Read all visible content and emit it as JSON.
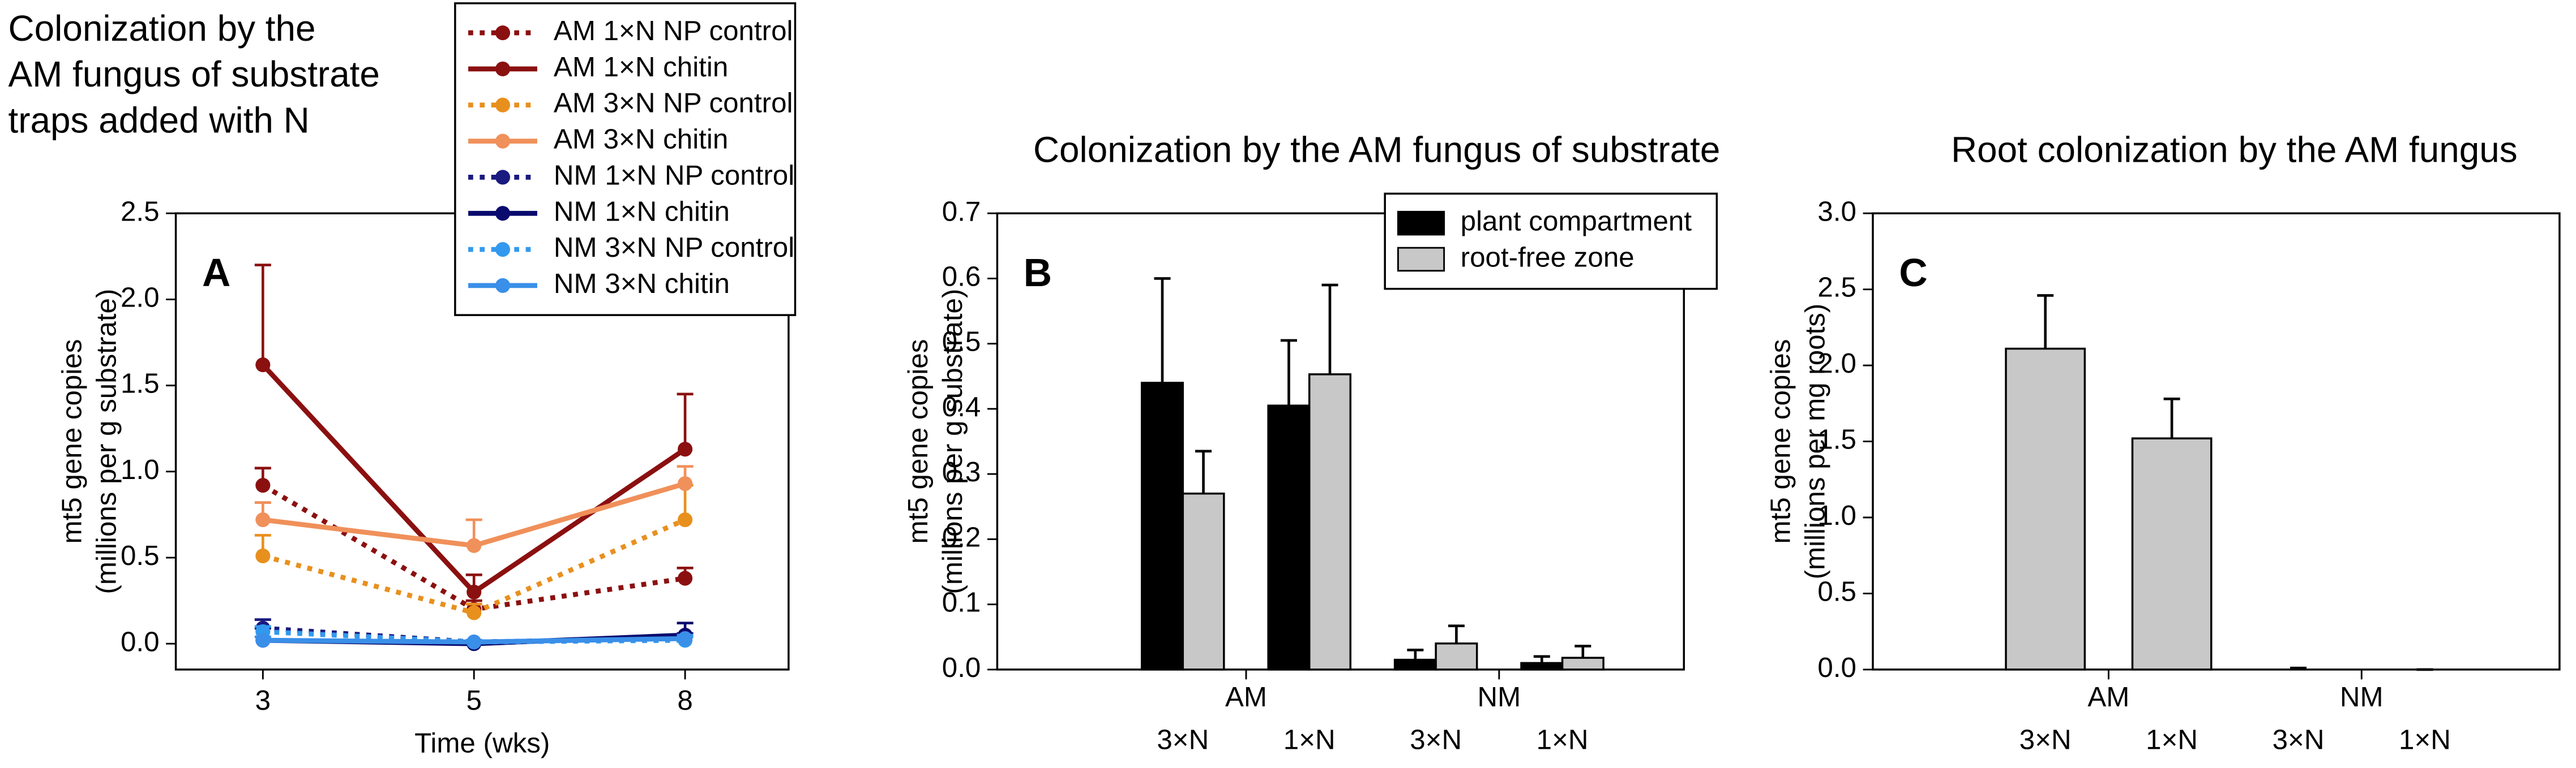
{
  "chart_data": [
    {
      "type": "line",
      "panel_label": "A",
      "title": [
        "Colonization by the",
        "AM fungus of substrate",
        "traps added with N"
      ],
      "xlabel": "Time (wks)",
      "ylabel": [
        "mt5 gene copies",
        "(millions per g substrate)"
      ],
      "categories": [
        "3",
        "5",
        "8"
      ],
      "ylim": [
        -0.15,
        2.5
      ],
      "yticks": [
        {
          "value": 0,
          "label": "0.0"
        },
        0.5,
        {
          "value": 1,
          "label": "1.0"
        },
        1.5,
        {
          "value": 2,
          "label": "2.0"
        },
        2.5
      ],
      "series": [
        {
          "name": "AM 1×N NP control",
          "color": "#8b1010",
          "line_style": "dotted",
          "values": [
            0.92,
            0.2,
            0.38
          ],
          "errors": [
            0.1,
            0.05,
            0.06
          ]
        },
        {
          "name": "AM 1×N chitin",
          "color": "#8b1010",
          "line_style": "solid",
          "values": [
            1.62,
            0.3,
            1.13
          ],
          "errors": [
            0.58,
            0.1,
            0.32
          ]
        },
        {
          "name": "AM 3×N NP control",
          "color": "#e8901e",
          "line_style": "dotted",
          "values": [
            0.51,
            0.18,
            0.72
          ],
          "errors": [
            0.12,
            0.05,
            0.2
          ]
        },
        {
          "name": "AM 3×N chitin",
          "color": "#f0905a",
          "line_style": "solid",
          "values": [
            0.72,
            0.57,
            0.93
          ],
          "errors": [
            0.1,
            0.15,
            0.1
          ]
        },
        {
          "name": "NM 1×N NP control",
          "color": "#1a1a80",
          "line_style": "dotted",
          "values": [
            0.09,
            0.01,
            0.03
          ],
          "errors": [
            0.05,
            0.01,
            0.03
          ]
        },
        {
          "name": "NM 1×N chitin",
          "color": "#0a0a6e",
          "line_style": "solid",
          "values": [
            0.02,
            0.0,
            0.05
          ],
          "errors": [
            0.07,
            0.01,
            0.07
          ]
        },
        {
          "name": "NM 3×N NP control",
          "color": "#3399ee",
          "line_style": "dotted",
          "values": [
            0.07,
            0.01,
            0.02
          ],
          "errors": [
            0.03,
            0.01,
            0.02
          ]
        },
        {
          "name": "NM 3×N chitin",
          "color": "#3a8fe8",
          "line_style": "solid",
          "values": [
            0.02,
            0.01,
            0.03
          ],
          "errors": [
            0.02,
            0.01,
            0.02
          ]
        }
      ]
    },
    {
      "type": "bar",
      "panel_label": "B",
      "title": [
        "Colonization by the AM fungus of substrate"
      ],
      "ylabel": [
        "mt5 gene copies",
        "(millions per g substrate)"
      ],
      "groups": [
        "AM",
        "NM"
      ],
      "categories": [
        "3×N",
        "1×N",
        "3×N",
        "1×N"
      ],
      "ylim": [
        0,
        0.7
      ],
      "yticks": [
        {
          "value": 0,
          "label": "0.0"
        },
        0.1,
        0.2,
        0.3,
        0.4,
        0.5,
        0.6,
        0.7
      ],
      "series": [
        {
          "name": "plant compartment",
          "color": "#000000",
          "values": [
            0.44,
            0.405,
            0.015,
            0.01
          ],
          "errors": [
            0.16,
            0.1,
            0.015,
            0.01
          ]
        },
        {
          "name": "root-free zone",
          "color": "#c8c8c8",
          "values": [
            0.27,
            0.453,
            0.04,
            0.018
          ],
          "errors": [
            0.065,
            0.137,
            0.027,
            0.018
          ]
        }
      ]
    },
    {
      "type": "bar",
      "panel_label": "C",
      "title": [
        "Root colonization by the AM fungus"
      ],
      "ylabel": [
        "mt5 gene copies",
        "(millions per mg roots)"
      ],
      "groups": [
        "AM",
        "NM"
      ],
      "categories": [
        "3×N",
        "1×N",
        "3×N",
        "1×N"
      ],
      "ylim": [
        0,
        3
      ],
      "yticks": [
        {
          "value": 0,
          "label": "0.0"
        },
        0.5,
        {
          "value": 1,
          "label": "1.0"
        },
        1.5,
        {
          "value": 2,
          "label": "2.0"
        },
        2.5,
        {
          "value": 3,
          "label": "3.0"
        }
      ],
      "series": [
        {
          "name": "root colonization",
          "color": "#c8c8c8",
          "values": [
            2.11,
            1.52,
            0,
            0
          ],
          "errors": [
            0.35,
            0.26,
            0.01,
            0
          ]
        }
      ]
    }
  ]
}
